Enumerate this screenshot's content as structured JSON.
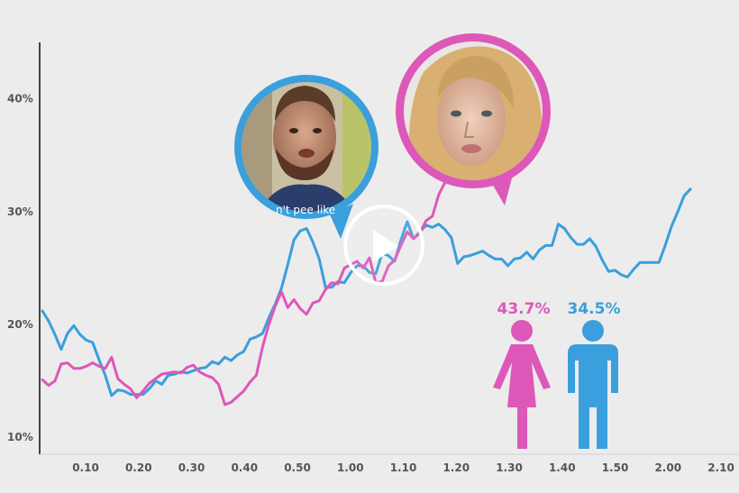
{
  "chart_data": {
    "type": "line",
    "title": "",
    "xlabel": "",
    "ylabel": "",
    "xlim": [
      0.0,
      2.12
    ],
    "ylim": [
      8.5,
      45
    ],
    "x_ticks": [
      "0.10",
      "0.20",
      "0.30",
      "0.40",
      "0.50",
      "1.00",
      "1.10",
      "1.20",
      "1.30",
      "1.40",
      "1.50",
      "2.00",
      "2.10"
    ],
    "y_ticks": [
      "10%",
      "20%",
      "30%",
      "40%"
    ],
    "grid": false,
    "legend": "none",
    "series": [
      {
        "color": "#3a9fdc",
        "x": [
          0.0,
          0.02,
          0.04,
          0.06,
          0.08,
          0.1,
          0.12,
          0.14,
          0.16,
          0.18,
          0.2,
          0.22,
          0.24,
          0.26,
          0.28,
          0.3,
          0.32,
          0.34,
          0.36,
          0.38,
          0.4,
          0.42,
          0.44,
          0.46,
          0.48,
          0.5,
          0.52,
          0.54,
          0.56,
          0.58,
          0.6,
          0.62,
          0.64,
          0.66,
          0.68,
          0.7,
          0.72,
          0.74,
          0.76,
          0.78,
          0.8,
          0.82,
          0.84,
          0.86,
          0.88,
          0.9,
          0.92,
          0.94,
          0.96,
          0.98,
          1.0,
          1.02,
          1.04,
          1.06,
          1.08,
          1.1,
          1.12,
          1.14,
          1.16,
          1.18,
          1.2,
          1.22,
          1.24,
          1.26,
          1.28,
          1.3,
          1.32,
          1.34,
          1.36,
          1.38,
          1.4,
          1.42,
          1.44,
          1.46,
          1.48,
          1.5,
          1.52,
          1.54,
          1.56,
          1.58,
          1.6,
          1.62,
          1.64,
          1.66,
          1.68,
          1.7,
          1.72,
          1.74,
          1.76,
          1.78,
          1.8,
          1.82,
          1.84,
          1.86,
          1.88,
          1.9,
          1.92,
          1.94,
          1.96,
          1.98,
          2.0,
          2.02,
          2.04,
          2.06
        ],
        "y": [
          21.2,
          20.3,
          19.1,
          17.8,
          19.2,
          19.9,
          19.1,
          18.6,
          18.4,
          16.9,
          15.5,
          13.7,
          14.2,
          14.1,
          13.8,
          13.8,
          13.8,
          14.3,
          15.0,
          14.7,
          15.5,
          15.6,
          15.8,
          15.7,
          15.9,
          16.1,
          16.2,
          16.7,
          16.5,
          17.1,
          16.8,
          17.3,
          17.6,
          18.7,
          18.9,
          19.2,
          20.6,
          21.8,
          23.2,
          25.3,
          27.5,
          28.3,
          28.5,
          27.3,
          25.8,
          23.3,
          23.3,
          23.8,
          23.7,
          24.6,
          25.2,
          25.2,
          24.6,
          24.5,
          26.3,
          26.1,
          25.6,
          27.5,
          29.1,
          27.6,
          28.2,
          28.8,
          28.6,
          28.9,
          28.4,
          27.7,
          25.4,
          26.0,
          26.1,
          26.3,
          26.5,
          26.1,
          25.8,
          25.8,
          25.2,
          25.8,
          25.9,
          26.4,
          25.8,
          26.6,
          27.0,
          27.0,
          28.9,
          28.5,
          27.7,
          27.1,
          27.1,
          27.6,
          26.9,
          25.7,
          24.7,
          24.8,
          24.4,
          24.2,
          24.9,
          25.5,
          25.5,
          25.5,
          25.5,
          27.0,
          28.7,
          30.0,
          31.4,
          32.0
        ]
      },
      {
        "color": "#dd58b8",
        "x": [
          0.0,
          0.02,
          0.04,
          0.06,
          0.08,
          0.1,
          0.12,
          0.14,
          0.16,
          0.18,
          0.2,
          0.22,
          0.24,
          0.26,
          0.28,
          0.3,
          0.32,
          0.34,
          0.36,
          0.38,
          0.4,
          0.42,
          0.44,
          0.46,
          0.48,
          0.5,
          0.52,
          0.54,
          0.56,
          0.58,
          0.6,
          0.62,
          0.64,
          0.66,
          0.68,
          0.7,
          0.72,
          0.74,
          0.76,
          0.78,
          0.8,
          0.82,
          0.84,
          0.86,
          0.88,
          0.9,
          0.92,
          0.94,
          0.96,
          0.98,
          1.0,
          1.02,
          1.04,
          1.06,
          1.08,
          1.1,
          1.12,
          1.14,
          1.16,
          1.18,
          1.2,
          1.22,
          1.24,
          1.26,
          1.28,
          1.3,
          1.32,
          1.34,
          1.36,
          1.38,
          1.4,
          1.42,
          1.44
        ],
        "y": [
          15.1,
          14.6,
          15.0,
          16.5,
          16.6,
          16.1,
          16.1,
          16.3,
          16.6,
          16.3,
          16.1,
          17.1,
          15.2,
          14.7,
          14.3,
          13.5,
          14.1,
          14.8,
          15.2,
          15.6,
          15.7,
          15.8,
          15.7,
          16.2,
          16.4,
          15.8,
          15.5,
          15.3,
          14.7,
          12.9,
          13.1,
          13.6,
          14.1,
          14.9,
          15.5,
          18.0,
          20.0,
          21.6,
          22.9,
          21.5,
          22.2,
          21.4,
          20.9,
          21.9,
          22.1,
          23.1,
          23.7,
          23.6,
          25.0,
          25.3,
          25.6,
          25.0,
          25.9,
          23.7,
          23.8,
          25.2,
          25.7,
          27.0,
          28.2,
          27.6,
          28.1,
          29.2,
          29.6,
          31.5,
          32.6,
          33.1,
          34.4,
          34.8,
          35.7,
          35.1,
          35.8,
          36.3,
          36.5
        ]
      }
    ],
    "annotations": [
      {
        "text": "43.7%",
        "color": "#dd58b8"
      },
      {
        "text": "34.5%",
        "color": "#3a9fdc"
      }
    ],
    "caption_fragment": "n't pee like"
  },
  "overlay": {
    "play_button_icon": "play-icon",
    "female_icon": "female-figure-icon",
    "male_icon": "male-figure-icon",
    "man_photo": "man-portrait-bubble",
    "woman_photo": "woman-portrait-bubble"
  },
  "colors": {
    "background": "#ececec",
    "male": "#3a9fdc",
    "female": "#dd58b8",
    "axis": "#444444"
  }
}
